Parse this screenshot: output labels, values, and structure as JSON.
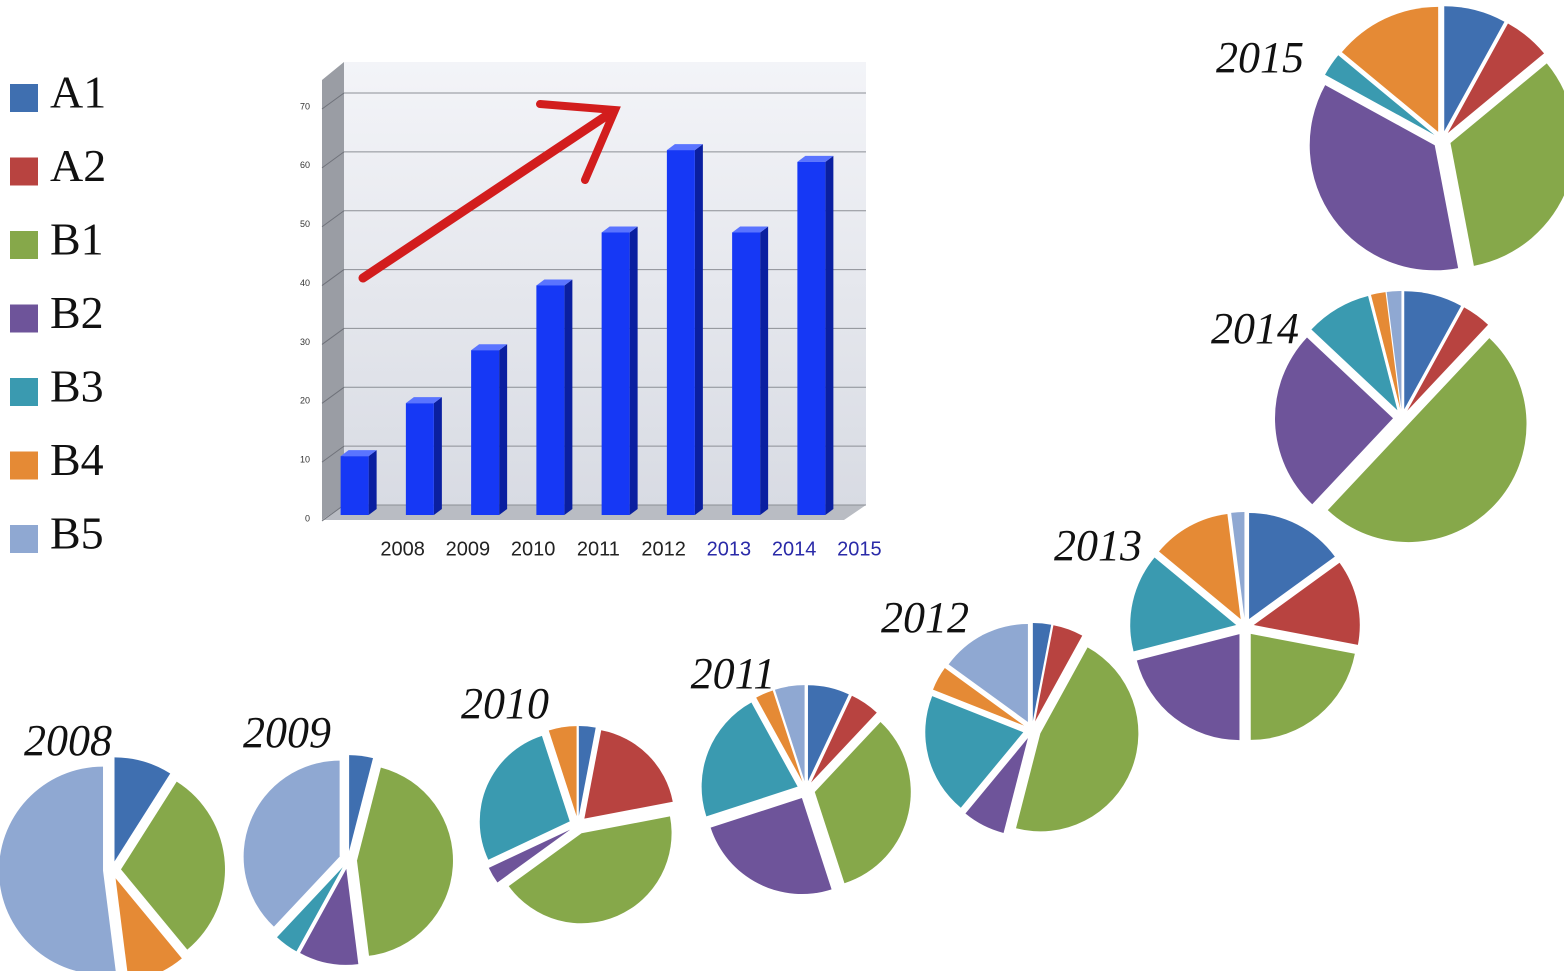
{
  "legend": {
    "labels": [
      "A1",
      "A2",
      "B1",
      "B2",
      "B3",
      "B4",
      "B5"
    ],
    "colors": [
      "#3f6fb0",
      "#b84340",
      "#86a84a",
      "#6e549a",
      "#3a9ab0",
      "#e58a35",
      "#8fa8d2"
    ]
  },
  "chart_data": [
    {
      "type": "bar",
      "categories": [
        "2008",
        "2009",
        "2010",
        "2011",
        "2012",
        "2013",
        "2014",
        "2015"
      ],
      "values": [
        10,
        19,
        28,
        39,
        48,
        62,
        48,
        60
      ],
      "color": "#1638f5",
      "label_colors": [
        "#222222",
        "#222222",
        "#222222",
        "#222222",
        "#222222",
        "#2a2aa8",
        "#2a2aa8",
        "#2a2aa8"
      ],
      "ylim": [
        0,
        70
      ],
      "yticks": [
        0,
        10,
        20,
        30,
        40,
        50,
        60,
        70
      ],
      "grid": true
    },
    {
      "type": "pie",
      "title": "2008",
      "values": [
        9,
        0,
        30,
        0,
        0,
        9,
        52
      ]
    },
    {
      "type": "pie",
      "title": "2009",
      "values": [
        4,
        0,
        44,
        10,
        4,
        0,
        38
      ]
    },
    {
      "type": "pie",
      "title": "2010",
      "values": [
        3,
        19,
        43,
        3,
        27,
        5,
        0
      ]
    },
    {
      "type": "pie",
      "title": "2011",
      "values": [
        7,
        5,
        33,
        25,
        22,
        3,
        5
      ]
    },
    {
      "type": "pie",
      "title": "2012",
      "values": [
        3,
        5,
        46,
        7,
        20,
        4,
        15
      ]
    },
    {
      "type": "pie",
      "title": "2013",
      "values": [
        15,
        13,
        22,
        21,
        15,
        12,
        2
      ]
    },
    {
      "type": "pie",
      "title": "2014",
      "values": [
        8,
        4,
        50,
        25,
        9,
        2,
        2
      ]
    },
    {
      "type": "pie",
      "title": "2015",
      "values": [
        8,
        6,
        33,
        36,
        3,
        14,
        0
      ]
    }
  ]
}
